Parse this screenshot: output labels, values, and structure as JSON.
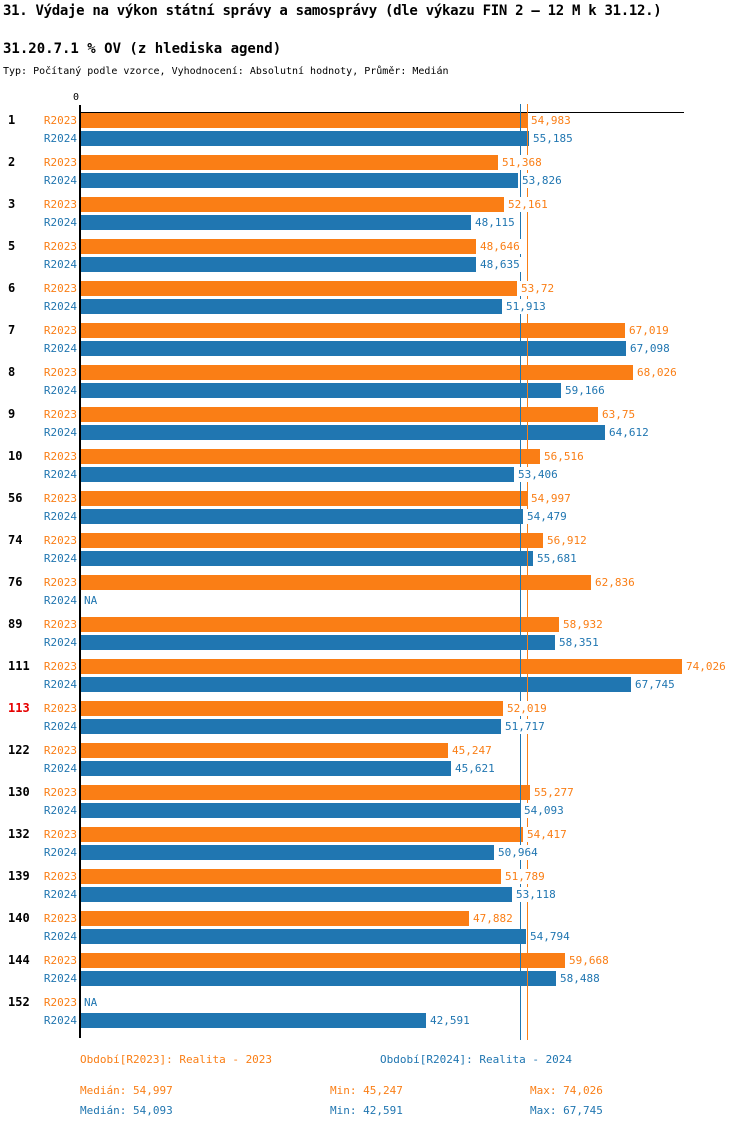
{
  "header": {
    "title": "31. Výdaje na výkon státní správy a samosprávy (dle výkazu FIN 2 – 12 M k 31.12.)",
    "subtitle": "31.20.7.1 % OV (z hlediska agend)",
    "meta": "Typ: Počítaný podle vzorce, Vyhodnocení: Absolutní hodnoty, Průměr: Medián"
  },
  "chart_data": {
    "type": "bar",
    "orientation": "horizontal",
    "title": "31.20.7.1 % OV (z hlediska agend)",
    "axis_zero_label": "0",
    "xlim": [
      0,
      74.026
    ],
    "na_label": "NA",
    "na_color": "#2076b1",
    "highlighted_category": "113",
    "highlight_color": "#e60000",
    "categories": [
      "1",
      "2",
      "3",
      "5",
      "6",
      "7",
      "8",
      "9",
      "10",
      "56",
      "74",
      "76",
      "89",
      "111",
      "113",
      "122",
      "130",
      "132",
      "139",
      "140",
      "144",
      "152"
    ],
    "series": [
      {
        "name": "R2023",
        "color": "#fa7e15",
        "median": 54.997,
        "values": [
          54.983,
          51.368,
          52.161,
          48.646,
          53.72,
          67.019,
          68.026,
          63.75,
          56.516,
          54.997,
          56.912,
          62.836,
          58.932,
          74.026,
          52.019,
          45.247,
          55.277,
          54.417,
          51.789,
          47.882,
          59.668,
          null
        ],
        "labels": [
          "54,983",
          "51,368",
          "52,161",
          "48,646",
          "53,72",
          "67,019",
          "68,026",
          "63,75",
          "56,516",
          "54,997",
          "56,912",
          "62,836",
          "58,932",
          "74,026",
          "52,019",
          "45,247",
          "55,277",
          "54,417",
          "51,789",
          "47,882",
          "59,668",
          "NA"
        ]
      },
      {
        "name": "R2024",
        "color": "#2076b1",
        "median": 54.093,
        "values": [
          55.185,
          53.826,
          48.115,
          48.635,
          51.913,
          67.098,
          59.166,
          64.612,
          53.406,
          54.479,
          55.681,
          null,
          58.351,
          67.745,
          51.717,
          45.621,
          54.093,
          50.964,
          53.118,
          54.794,
          58.488,
          42.591
        ],
        "labels": [
          "55,185",
          "53,826",
          "48,115",
          "48,635",
          "51,913",
          "67,098",
          "59,166",
          "64,612",
          "53,406",
          "54,479",
          "55,681",
          "NA",
          "58,351",
          "67,745",
          "51,717",
          "45,621",
          "54,093",
          "50,964",
          "53,118",
          "54,794",
          "58,488",
          "42,591"
        ]
      }
    ]
  },
  "footer": {
    "legend": {
      "r2023": "Období[R2023]: Realita - 2023",
      "r2024": "Období[R2024]: Realita - 2024"
    },
    "stats": {
      "r2023": {
        "median": "Medián: 54,997",
        "min": "Min: 45,247",
        "max": "Max: 74,026"
      },
      "r2024": {
        "median": "Medián: 54,093",
        "min": "Min: 42,591",
        "max": "Max: 67,745"
      }
    }
  }
}
